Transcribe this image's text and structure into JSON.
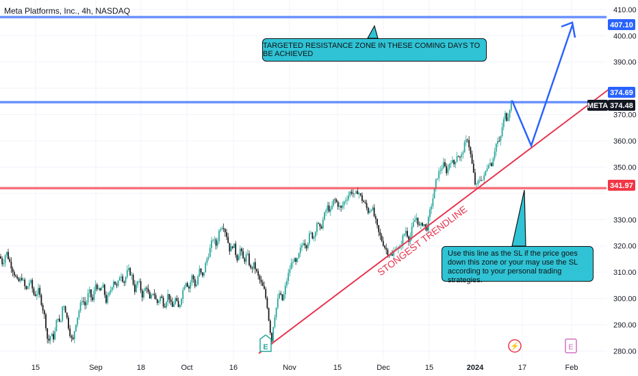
{
  "chart_data": {
    "type": "candlestick",
    "title": "Meta Platforms, Inc., 4h, NASDAQ",
    "symbol": "META",
    "y_axis": {
      "ticks": [
        410.0,
        400.0,
        390.0,
        380.0,
        370.0,
        360.0,
        350.0,
        340.0,
        330.0,
        320.0,
        310.0,
        300.0,
        290.0,
        280.0
      ],
      "tick_labels": [
        "410.00",
        "400.00",
        "390.00",
        "",
        "370.00",
        "360.00",
        "350.00",
        "",
        "330.00",
        "320.00",
        "310.00",
        "300.00",
        "290.00",
        "280.00"
      ],
      "range": [
        270.5,
        413.6
      ],
      "position": "right"
    },
    "x_axis": {
      "ticks": [
        "15",
        "Sep",
        "18",
        "Oct",
        "16",
        "Nov",
        "15",
        "Dec",
        "15",
        "2024",
        "17",
        "Feb"
      ],
      "bold_ticks": [
        "2024"
      ]
    },
    "price_trace": [
      [
        0,
        316
      ],
      [
        4,
        313
      ],
      [
        9,
        318
      ],
      [
        14,
        314
      ],
      [
        20,
        310
      ],
      [
        26,
        306
      ],
      [
        32,
        308
      ],
      [
        38,
        303
      ],
      [
        44,
        307
      ],
      [
        50,
        301
      ],
      [
        56,
        303
      ],
      [
        61,
        298
      ],
      [
        66,
        292
      ],
      [
        70,
        283
      ],
      [
        74,
        286
      ],
      [
        79,
        285
      ],
      [
        84,
        294
      ],
      [
        88,
        289
      ],
      [
        92,
        299
      ],
      [
        96,
        295
      ],
      [
        101,
        288
      ],
      [
        106,
        283
      ],
      [
        110,
        290
      ],
      [
        115,
        295
      ],
      [
        120,
        300
      ],
      [
        125,
        297
      ],
      [
        130,
        303
      ],
      [
        135,
        299
      ],
      [
        140,
        306
      ],
      [
        145,
        302
      ],
      [
        150,
        305
      ],
      [
        155,
        299
      ],
      [
        160,
        302
      ],
      [
        166,
        307
      ],
      [
        171,
        304
      ],
      [
        176,
        310
      ],
      [
        181,
        306
      ],
      [
        187,
        311
      ],
      [
        192,
        309
      ],
      [
        197,
        303
      ],
      [
        202,
        307
      ],
      [
        208,
        301
      ],
      [
        214,
        305
      ],
      [
        219,
        299
      ],
      [
        224,
        303
      ],
      [
        229,
        298
      ],
      [
        235,
        301
      ],
      [
        240,
        297
      ],
      [
        246,
        302
      ],
      [
        251,
        296
      ],
      [
        256,
        300
      ],
      [
        261,
        296
      ],
      [
        266,
        302
      ],
      [
        271,
        307
      ],
      [
        276,
        304
      ],
      [
        281,
        309
      ],
      [
        286,
        304
      ],
      [
        291,
        311
      ],
      [
        296,
        308
      ],
      [
        301,
        314
      ],
      [
        306,
        318
      ],
      [
        311,
        323
      ],
      [
        316,
        320
      ],
      [
        321,
        327
      ],
      [
        326,
        328
      ],
      [
        331,
        324
      ],
      [
        336,
        318
      ],
      [
        341,
        321
      ],
      [
        346,
        315
      ],
      [
        351,
        319
      ],
      [
        356,
        314
      ],
      [
        361,
        317
      ],
      [
        366,
        311
      ],
      [
        371,
        313
      ],
      [
        376,
        309
      ],
      [
        381,
        306
      ],
      [
        386,
        303
      ],
      [
        390,
        298
      ],
      [
        394,
        289
      ],
      [
        397,
        284
      ],
      [
        400,
        292
      ],
      [
        404,
        297
      ],
      [
        408,
        302
      ],
      [
        413,
        299
      ],
      [
        418,
        306
      ],
      [
        423,
        311
      ],
      [
        428,
        315
      ],
      [
        433,
        313
      ],
      [
        438,
        318
      ],
      [
        443,
        322
      ],
      [
        448,
        320
      ],
      [
        453,
        325
      ],
      [
        458,
        323
      ],
      [
        463,
        329
      ],
      [
        468,
        326
      ],
      [
        473,
        331
      ],
      [
        478,
        335
      ],
      [
        483,
        333
      ],
      [
        488,
        338
      ],
      [
        493,
        336
      ],
      [
        498,
        334
      ],
      [
        503,
        337
      ],
      [
        508,
        339
      ],
      [
        513,
        341
      ],
      [
        518,
        339
      ],
      [
        523,
        341
      ],
      [
        528,
        338
      ],
      [
        533,
        336
      ],
      [
        538,
        333
      ],
      [
        543,
        335
      ],
      [
        548,
        330
      ],
      [
        553,
        325
      ],
      [
        558,
        322
      ],
      [
        563,
        319
      ],
      [
        568,
        317
      ],
      [
        573,
        316
      ],
      [
        578,
        320
      ],
      [
        583,
        318
      ],
      [
        588,
        323
      ],
      [
        593,
        326
      ],
      [
        598,
        322
      ],
      [
        603,
        328
      ],
      [
        608,
        331
      ],
      [
        613,
        327
      ],
      [
        618,
        329
      ],
      [
        623,
        326
      ],
      [
        628,
        333
      ],
      [
        633,
        339
      ],
      [
        638,
        346
      ],
      [
        643,
        349
      ],
      [
        648,
        351
      ],
      [
        653,
        348
      ],
      [
        658,
        353
      ],
      [
        663,
        351
      ],
      [
        668,
        355
      ],
      [
        673,
        353
      ],
      [
        678,
        358
      ],
      [
        683,
        361
      ],
      [
        686,
        357
      ],
      [
        689,
        352
      ],
      [
        692,
        347
      ],
      [
        695,
        342
      ],
      [
        698,
        344
      ],
      [
        702,
        346
      ],
      [
        706,
        345
      ],
      [
        710,
        349
      ],
      [
        714,
        352
      ],
      [
        718,
        351
      ],
      [
        722,
        356
      ],
      [
        726,
        360
      ],
      [
        730,
        359
      ],
      [
        734,
        366
      ],
      [
        738,
        370
      ],
      [
        741,
        368
      ],
      [
        744,
        372
      ],
      [
        747,
        374.48
      ]
    ],
    "horizontal_levels": [
      {
        "value": 407.1,
        "label": "407.10",
        "color": "#2962ff"
      },
      {
        "value": 374.69,
        "label": "374.69",
        "color": "#2962ff"
      },
      {
        "value": 341.97,
        "label": "341.97",
        "color": "#f23645"
      }
    ],
    "last_price": {
      "symbol": "META",
      "value": 374.48,
      "label": "374.48"
    },
    "trendline": {
      "label": "STONGEST TRENDLINE",
      "color": "#e8334d"
    },
    "projection": {
      "color": "#2962ff"
    },
    "annotations": {
      "resistance_note": "TARGETED RESISTANCE ZONE IN THESE COMING DAYS TO BE ACHIEVED",
      "stop_loss_note": "Use this line as the SL if the price goes down this zone or your may use the SL according to your personal trading strategies."
    },
    "event_markers": [
      "E",
      "⚡",
      "E"
    ],
    "colors": {
      "up": "#26a69a",
      "down": "#1a1a1a",
      "grid": "#f0f3fa",
      "note_bg": "#2fc3d5"
    }
  }
}
